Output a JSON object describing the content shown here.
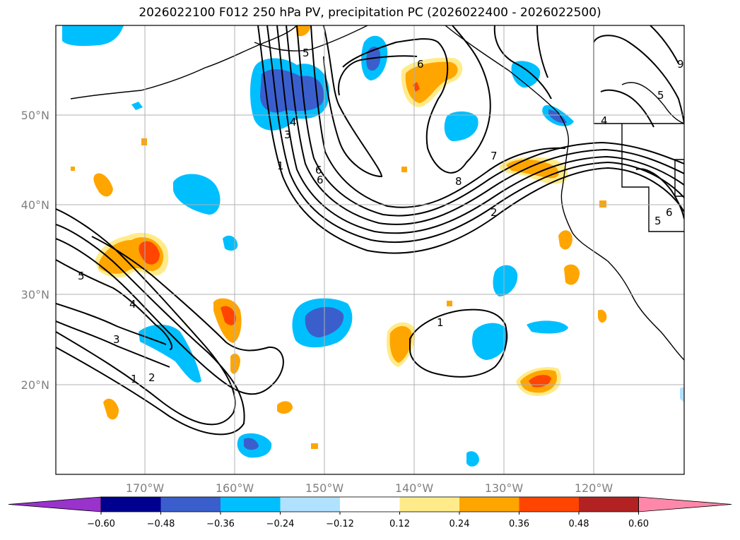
{
  "title": "2026022100 F012 250 hPa PV, precipitation PC (2026022400 - 2026022500)",
  "lat_labels": [
    "50°N",
    "40°N",
    "30°N",
    "20°N"
  ],
  "lon_labels": [
    "170°W",
    "160°W",
    "150°W",
    "140°W",
    "130°W",
    "120°W"
  ],
  "colorbar": {
    "ticks": [
      "−0.60",
      "−0.48",
      "−0.36",
      "−0.24",
      "−0.12",
      "0.12",
      "0.24",
      "0.36",
      "0.48",
      "0.60"
    ],
    "colors": [
      "#9933cc",
      "#000090",
      "#3a5fcd",
      "#00bfff",
      "#b0e2ff",
      "#ffffff",
      "#ffeb8a",
      "#ffa500",
      "#ff4500",
      "#b22222",
      "#ff88aa"
    ]
  },
  "contour_labels": [
    "5",
    "4",
    "3",
    "2",
    "1",
    "1",
    "2",
    "8",
    "7",
    "6",
    "5",
    "4",
    "3",
    "1",
    "6",
    "5",
    "4",
    "5",
    "6",
    "9",
    "6"
  ]
}
